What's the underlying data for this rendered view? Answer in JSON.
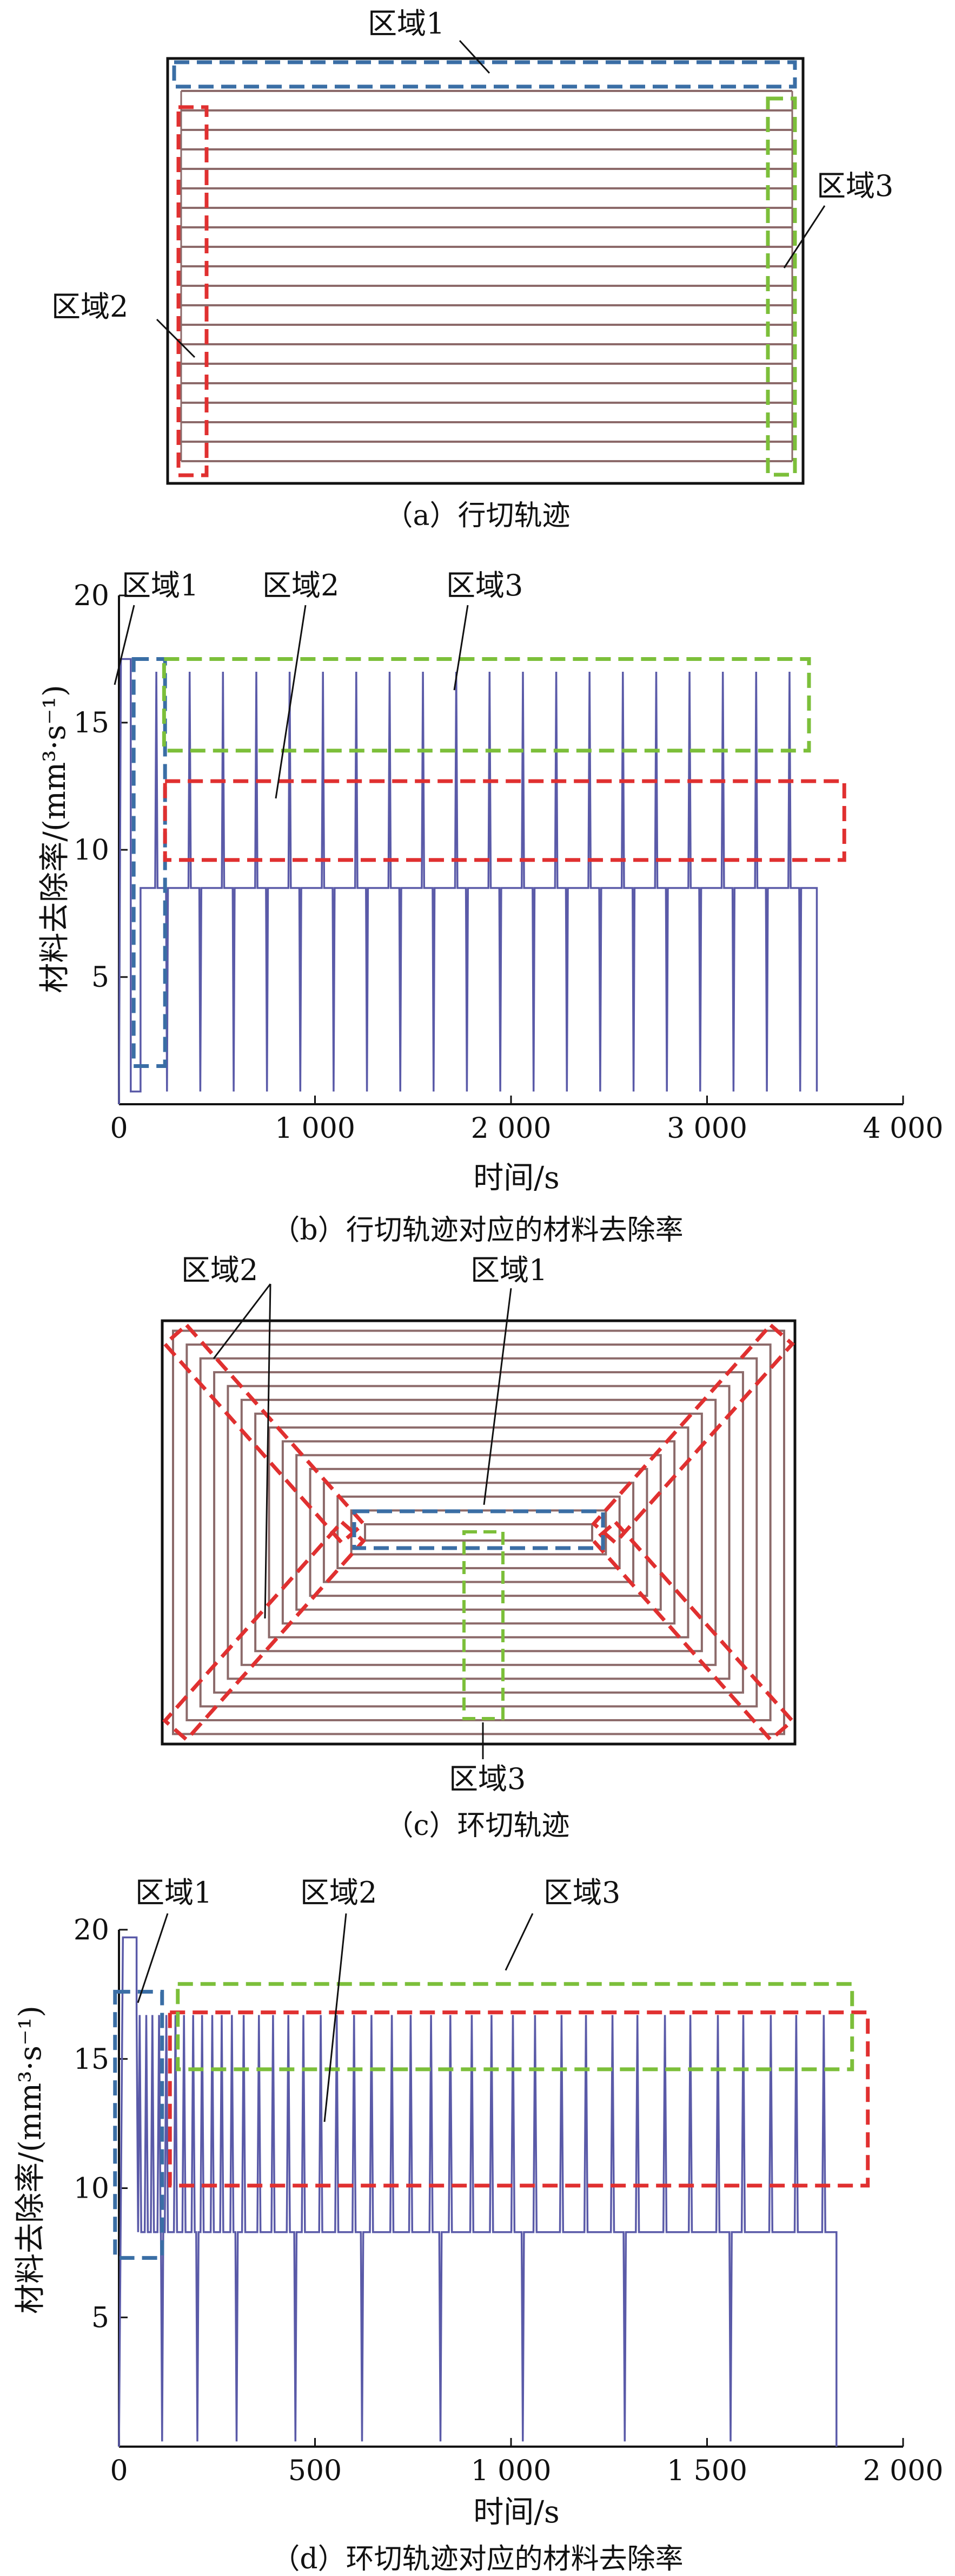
{
  "panels": {
    "a": {
      "caption": "（a）行切轨迹",
      "labels": {
        "r1": "区域1",
        "r2": "区域2",
        "r3": "区域3"
      }
    },
    "b": {
      "caption": "（b）行切轨迹对应的材料去除率",
      "labels": {
        "r1": "区域1",
        "r2": "区域2",
        "r3": "区域3"
      }
    },
    "c": {
      "caption": "（c）环切轨迹",
      "labels": {
        "r1": "区域1",
        "r2": "区域2",
        "r3": "区域3"
      }
    },
    "d": {
      "caption": "（d）环切轨迹对应的材料去除率",
      "labels": {
        "r1": "区域1",
        "r2": "区域2",
        "r3": "区域3"
      }
    }
  },
  "colors": {
    "trace": "#5a5aa8",
    "path": "#8c6a6a",
    "region1": "#3a6ea5",
    "region2": "#e03030",
    "region3": "#7cbf3a",
    "frame": "#111111"
  },
  "chart_data": [
    {
      "type": "line",
      "id": "b",
      "xlabel": "时间/s",
      "ylabel": "材料去除率/(mm³·s⁻¹)",
      "xlim": [
        0,
        4000
      ],
      "ylim": [
        0,
        20
      ],
      "xticks": [
        0,
        1000,
        2000,
        3000,
        4000
      ],
      "xtick_labels": [
        "0",
        "1 000",
        "2 000",
        "3 000",
        "4 000"
      ],
      "yticks": [
        5,
        10,
        15,
        20
      ],
      "ytick_labels": [
        "5",
        "10",
        "15",
        "20"
      ],
      "series": [
        {
          "pattern": "row-cut: start ramp then repeated passes",
          "start_peak": {
            "x": 60,
            "y": 17.5
          },
          "first_row": {
            "x_start": 110,
            "x_end": 160,
            "y": 8.5
          },
          "pass_count": 20,
          "pass_x_start": 160,
          "pass_x_end": 3560,
          "plateau_value": 8.5,
          "peak_value": 17.0,
          "dip_value": 0.5
        }
      ],
      "regions": [
        {
          "name": "区域1",
          "x": [
            75,
            235
          ],
          "y": [
            1.5,
            17.5
          ]
        },
        {
          "name": "区域2",
          "x": [
            235,
            3700
          ],
          "y": [
            9.6,
            12.7
          ]
        },
        {
          "name": "区域3",
          "x": [
            230,
            3520
          ],
          "y": [
            13.9,
            17.5
          ]
        }
      ]
    },
    {
      "type": "line",
      "id": "d",
      "xlabel": "时间/s",
      "ylabel": "材料去除率/(mm³·s⁻¹)",
      "xlim": [
        0,
        2000
      ],
      "ylim": [
        0,
        20
      ],
      "xticks": [
        0,
        500,
        1000,
        1500,
        2000
      ],
      "xtick_labels": [
        "0",
        "500",
        "1 000",
        "1 500",
        "2 000"
      ],
      "yticks": [
        5,
        10,
        15,
        20
      ],
      "ytick_labels": [
        "5",
        "10",
        "15",
        "20"
      ],
      "series": [
        {
          "pattern": "contour-cut: corners at 16.7, plateaus at 8.3, deep dips on ring change",
          "start_peak": {
            "x": 45,
            "y": 19.7
          },
          "plateau_value": 8.3,
          "corner_value": 16.7,
          "x_end": 1830,
          "ring_change_x": [
            55,
            110,
            200,
            300,
            450,
            620,
            820,
            1030,
            1290,
            1560
          ],
          "ring_change_depth": [
            0.2,
            0.2,
            0.2,
            0.2,
            0.2,
            0.2,
            0.2,
            0.2,
            0.2,
            0.2
          ]
        }
      ],
      "regions": [
        {
          "name": "区域1",
          "x": [
            -10,
            110
          ],
          "y": [
            7.3,
            17.6
          ]
        },
        {
          "name": "区域2",
          "x": [
            130,
            1910
          ],
          "y": [
            10.1,
            16.8
          ]
        },
        {
          "name": "区域3",
          "x": [
            150,
            1870
          ],
          "y": [
            14.6,
            17.9
          ]
        }
      ]
    }
  ]
}
